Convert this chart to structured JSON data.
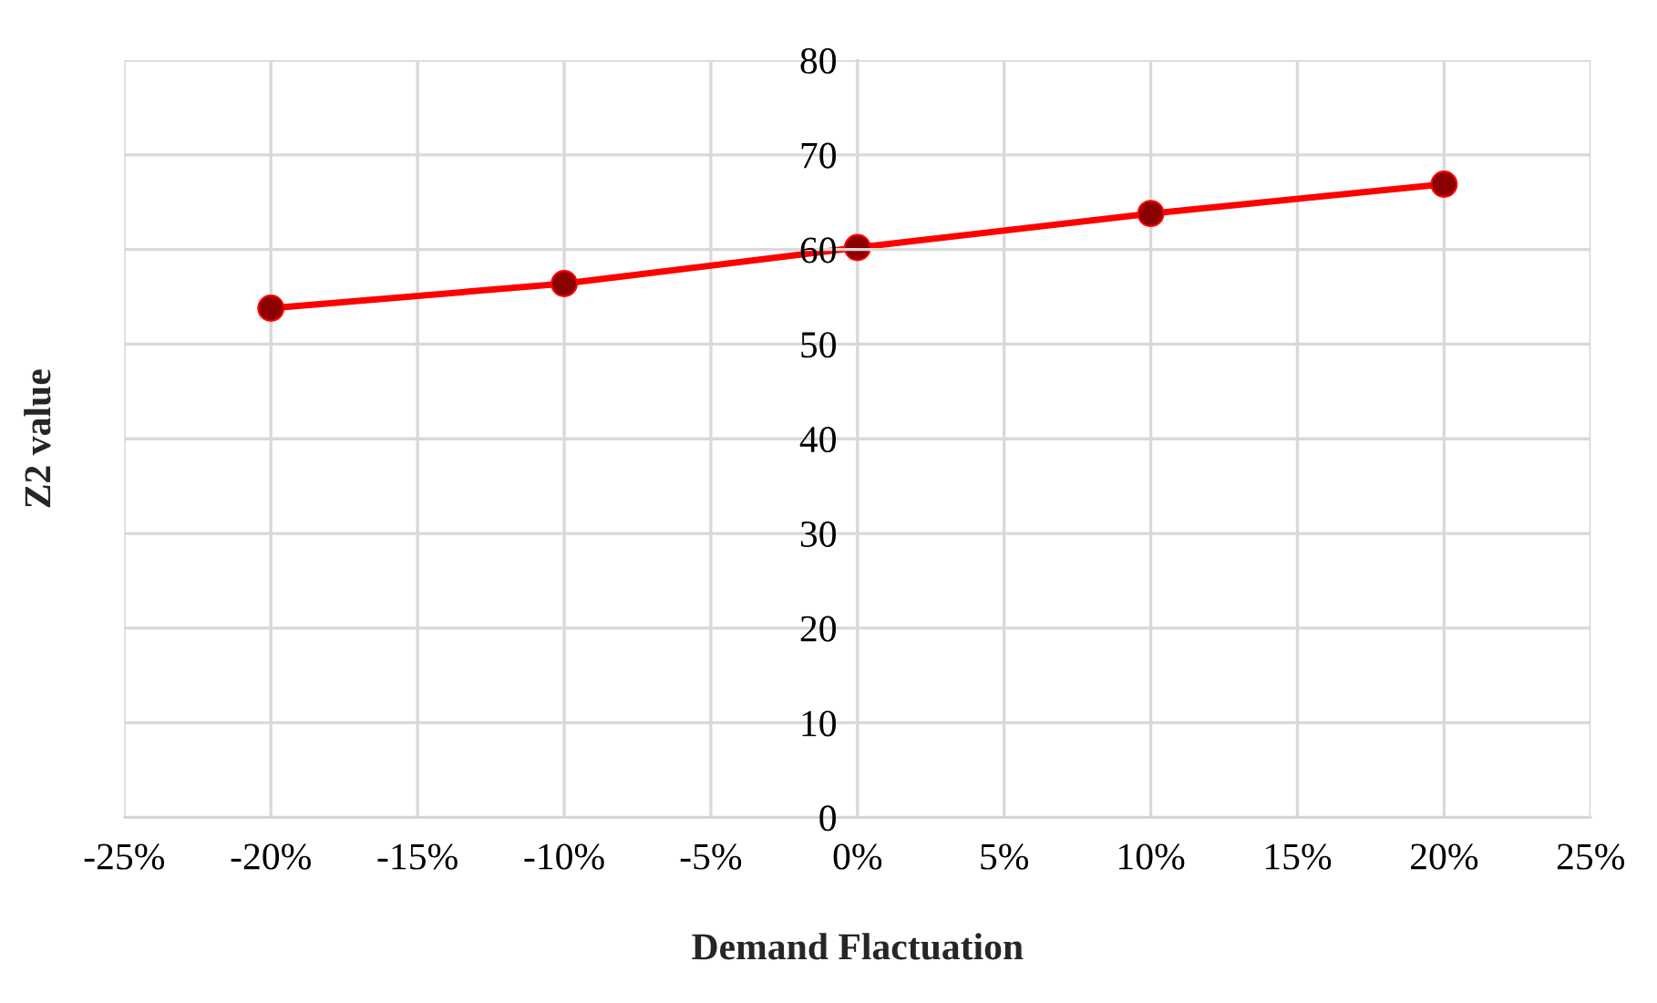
{
  "chart_data": {
    "type": "line",
    "xlabel": "Demand Flactuation",
    "ylabel": "Z2 value",
    "x": [
      -20,
      -10,
      0,
      10,
      20
    ],
    "series": [
      {
        "color": "#ff0000",
        "values": [
          53.8,
          56.4,
          60.2,
          63.8,
          66.9
        ]
      }
    ],
    "xlim": [
      -25,
      25
    ],
    "xticks": [
      {
        "value": -25,
        "label": "-25%"
      },
      {
        "value": -20,
        "label": "-20%"
      },
      {
        "value": -15,
        "label": "-15%"
      },
      {
        "value": -10,
        "label": "-10%"
      },
      {
        "value": -5,
        "label": "-5%"
      },
      {
        "value": 0,
        "label": "0%"
      },
      {
        "value": 5,
        "label": "5%"
      },
      {
        "value": 10,
        "label": "10%"
      },
      {
        "value": 15,
        "label": "15%"
      },
      {
        "value": 20,
        "label": "20%"
      },
      {
        "value": 25,
        "label": "25%"
      }
    ],
    "ylim": [
      0,
      80
    ],
    "yticks": [
      0,
      10,
      20,
      30,
      40,
      50,
      60,
      70,
      80
    ],
    "grid": true,
    "marker": "circle",
    "line_style": "solid"
  }
}
